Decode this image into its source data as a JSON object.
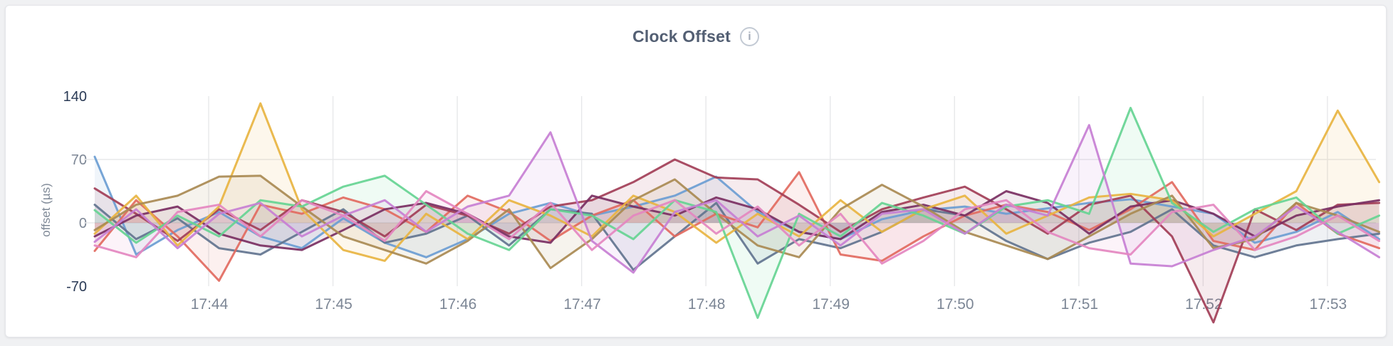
{
  "header": {
    "title": "Clock Offset",
    "info_icon": "i"
  },
  "colors": {
    "page_bg": "#f0f1f3",
    "card_bg": "#ffffff",
    "title": "#535f73",
    "grid": "#e7e8ea",
    "tick_muted": "#7c8695",
    "tick_strong": "#2a3a55",
    "icon": "#c3cad4"
  },
  "chart_data": {
    "type": "line",
    "title": "Clock Offset",
    "xlabel": "",
    "ylabel": "offset (µs)",
    "unit": "µs",
    "ylim": [
      -70,
      140
    ],
    "legend": "none",
    "fill": "area-to-zero",
    "grid": {
      "vertical": true,
      "horizontal_values": [
        70,
        0
      ]
    },
    "y_ticks": [
      {
        "label": "140",
        "value": 140,
        "emphasis": true
      },
      {
        "label": "70",
        "value": 70,
        "emphasis": false
      },
      {
        "label": "0",
        "value": 0,
        "emphasis": false
      },
      {
        "label": "-70",
        "value": -70,
        "emphasis": true
      }
    ],
    "x_ticks": [
      "17:44",
      "17:45",
      "17:46",
      "17:47",
      "17:48",
      "17:49",
      "17:50",
      "17:51",
      "17:52",
      "17:53"
    ],
    "x": [
      "17:43:05",
      "17:43:25",
      "17:43:45",
      "17:44:05",
      "17:44:25",
      "17:44:45",
      "17:45:05",
      "17:45:25",
      "17:45:45",
      "17:46:05",
      "17:46:25",
      "17:46:45",
      "17:47:05",
      "17:47:25",
      "17:47:45",
      "17:48:05",
      "17:48:25",
      "17:48:45",
      "17:49:05",
      "17:49:25",
      "17:49:45",
      "17:50:05",
      "17:50:25",
      "17:50:45",
      "17:51:05",
      "17:51:25",
      "17:51:45",
      "17:52:05",
      "17:52:25",
      "17:52:45",
      "17:53:05",
      "17:53:25"
    ],
    "series": [
      {
        "name": "series-blue",
        "color": "#6B9DD2",
        "values": [
          73,
          -35,
          -8,
          12,
          -15,
          -28,
          5,
          -22,
          -38,
          -18,
          10,
          22,
          8,
          18,
          30,
          51,
          12,
          -10,
          -18,
          4,
          14,
          18,
          10,
          16,
          22,
          26,
          18,
          10,
          -22,
          -10,
          12,
          -18
        ]
      },
      {
        "name": "series-slate",
        "color": "#62748F",
        "values": [
          20,
          -18,
          5,
          -28,
          -35,
          -10,
          15,
          -22,
          -12,
          8,
          -25,
          15,
          10,
          -52,
          -15,
          22,
          -45,
          -18,
          -28,
          -10,
          15,
          8,
          -20,
          -40,
          -22,
          -10,
          15,
          -25,
          -38,
          -25,
          -18,
          -12
        ]
      },
      {
        "name": "series-coral",
        "color": "#E26A60",
        "values": [
          -31,
          25,
          -15,
          -64,
          20,
          10,
          28,
          15,
          -10,
          30,
          12,
          -20,
          8,
          25,
          -15,
          10,
          -5,
          56,
          -35,
          -42,
          -15,
          8,
          20,
          12,
          -8,
          15,
          45,
          -20,
          -30,
          22,
          -12,
          -28
        ]
      },
      {
        "name": "series-maroon",
        "color": "#A23E57",
        "values": [
          38,
          10,
          -20,
          15,
          -8,
          25,
          12,
          -15,
          20,
          8,
          -12,
          18,
          25,
          45,
          70,
          50,
          48,
          20,
          -10,
          15,
          28,
          40,
          15,
          -12,
          20,
          30,
          -15,
          -110,
          15,
          -8,
          20,
          22
        ]
      },
      {
        "name": "series-plum",
        "color": "#7A2F62",
        "values": [
          -15,
          8,
          18,
          -12,
          -25,
          -30,
          -8,
          15,
          22,
          10,
          -15,
          -22,
          30,
          18,
          8,
          28,
          15,
          -10,
          -18,
          12,
          20,
          8,
          35,
          22,
          -12,
          18,
          25,
          10,
          -15,
          8,
          18,
          25
        ]
      },
      {
        "name": "series-gold",
        "color": "#E8B441",
        "values": [
          -12,
          30,
          -25,
          18,
          132,
          15,
          -30,
          -42,
          10,
          -18,
          25,
          8,
          -15,
          30,
          12,
          -22,
          10,
          -15,
          25,
          -10,
          15,
          30,
          -12,
          8,
          28,
          32,
          25,
          -15,
          10,
          35,
          124,
          45
        ]
      },
      {
        "name": "series-khaki",
        "color": "#A98A52",
        "values": [
          -8,
          20,
          30,
          51,
          52,
          18,
          -15,
          -30,
          -45,
          -20,
          15,
          -50,
          -18,
          25,
          48,
          10,
          -25,
          -38,
          15,
          42,
          18,
          -10,
          -25,
          -40,
          -15,
          10,
          30,
          -28,
          -18,
          22,
          8,
          -10
        ]
      },
      {
        "name": "series-green",
        "color": "#66D492",
        "values": [
          14,
          -22,
          8,
          -15,
          25,
          18,
          40,
          52,
          20,
          -12,
          -30,
          15,
          8,
          -18,
          25,
          12,
          -105,
          10,
          -15,
          22,
          8,
          -12,
          18,
          25,
          10,
          127,
          22,
          -10,
          15,
          28,
          -12,
          8
        ]
      },
      {
        "name": "series-violet",
        "color": "#C77FD4",
        "values": [
          -21,
          15,
          -28,
          10,
          22,
          -15,
          8,
          25,
          -10,
          18,
          30,
          100,
          -20,
          -55,
          12,
          25,
          -15,
          8,
          -25,
          10,
          15,
          -12,
          20,
          8,
          108,
          -45,
          -48,
          -30,
          -15,
          18,
          -10,
          -38
        ]
      },
      {
        "name": "series-pink",
        "color": "#E487C0",
        "values": [
          -25,
          -38,
          12,
          20,
          -15,
          25,
          8,
          -20,
          35,
          10,
          -18,
          22,
          -30,
          8,
          25,
          -12,
          18,
          -25,
          10,
          -45,
          -20,
          15,
          25,
          -10,
          -28,
          -35,
          12,
          20,
          -30,
          -15,
          8,
          -20
        ]
      }
    ]
  }
}
